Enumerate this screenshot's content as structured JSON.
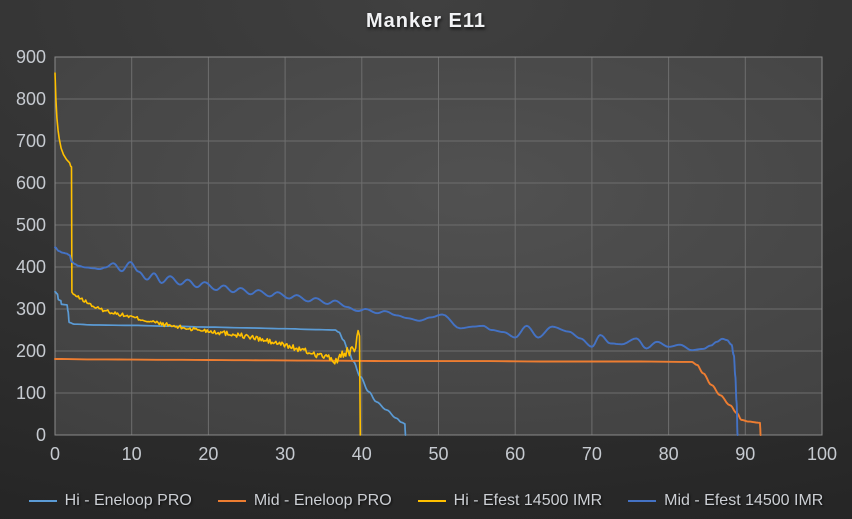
{
  "colors": {
    "background_outer": "#343434",
    "plot_fill_center": "#515151",
    "plot_fill_edge": "#3f3f3f",
    "gridline": "#6e6e6e",
    "plot_border": "#8a8a8a",
    "tick_text": "#c6cad0",
    "title_text": "#f1f2f4",
    "legend_text": "#cdd0d5"
  },
  "chart_data": {
    "type": "line",
    "title": "Manker E11",
    "xlabel": "",
    "ylabel": "",
    "xlim": [
      0,
      100
    ],
    "ylim": [
      0,
      900
    ],
    "x_ticks": [
      0,
      10,
      20,
      30,
      40,
      50,
      60,
      70,
      80,
      90,
      100
    ],
    "y_ticks": [
      0,
      100,
      200,
      300,
      400,
      500,
      600,
      700,
      800,
      900
    ],
    "grid": true,
    "legend_position": "bottom",
    "series": [
      {
        "name": "Hi - Eneloop PRO",
        "color": "#5B9BD5",
        "width": 1.7,
        "smooth": true,
        "points": [
          [
            0,
            341
          ],
          [
            0.3,
            336
          ],
          [
            0.45,
            322
          ],
          [
            0.75,
            320
          ],
          [
            0.85,
            311
          ],
          [
            1.55,
            310
          ],
          [
            1.7,
            295
          ],
          [
            1.85,
            268
          ],
          [
            2.5,
            264
          ],
          [
            5,
            262
          ],
          [
            10,
            261
          ],
          [
            15,
            259
          ],
          [
            20,
            257
          ],
          [
            25,
            255
          ],
          [
            30,
            253
          ],
          [
            34,
            251
          ],
          [
            36.5,
            250
          ],
          [
            37,
            245
          ],
          [
            37.6,
            226
          ],
          [
            38.2,
            202
          ],
          [
            38.9,
            175
          ],
          [
            39.8,
            139
          ],
          [
            40.9,
            103
          ],
          [
            41.9,
            79
          ],
          [
            43.2,
            60
          ],
          [
            44.5,
            40
          ],
          [
            45.2,
            30
          ],
          [
            45.6,
            27
          ],
          [
            45.7,
            0
          ]
        ]
      },
      {
        "name": "Mid - Eneloop PRO",
        "color": "#ED7D31",
        "width": 1.9,
        "smooth": true,
        "points": [
          [
            0,
            181
          ],
          [
            5,
            180
          ],
          [
            15,
            179
          ],
          [
            25,
            178
          ],
          [
            35,
            177
          ],
          [
            45,
            176
          ],
          [
            55,
            176
          ],
          [
            65,
            175
          ],
          [
            75,
            175
          ],
          [
            83,
            174
          ],
          [
            83.7,
            167
          ],
          [
            84.5,
            147
          ],
          [
            85.6,
            119
          ],
          [
            86.7,
            95
          ],
          [
            88,
            71
          ],
          [
            88.9,
            52
          ],
          [
            89.5,
            36
          ],
          [
            90.4,
            32
          ],
          [
            91.9,
            29
          ],
          [
            92,
            0
          ]
        ]
      },
      {
        "name": "Hi - Efest 14500 IMR",
        "color": "#FFC000",
        "width": 1.6,
        "smooth": false,
        "noise": {
          "from": 2.4,
          "to": 39.6,
          "step": 0.16,
          "amp_start": 3.5,
          "amp_end": 8
        },
        "points": [
          [
            0,
            862
          ],
          [
            0.12,
            800
          ],
          [
            0.25,
            755
          ],
          [
            0.4,
            725
          ],
          [
            0.55,
            706
          ],
          [
            0.8,
            683
          ],
          [
            1.1,
            668
          ],
          [
            1.5,
            656
          ],
          [
            1.9,
            648
          ],
          [
            2.05,
            640
          ],
          [
            2.15,
            638
          ],
          [
            2.2,
            340
          ],
          [
            2.4,
            335
          ],
          [
            3,
            328
          ],
          [
            4,
            318
          ],
          [
            5,
            306
          ],
          [
            6,
            299
          ],
          [
            7,
            294
          ],
          [
            8,
            289
          ],
          [
            9,
            285
          ],
          [
            10,
            281
          ],
          [
            12,
            272
          ],
          [
            14,
            264
          ],
          [
            16,
            257
          ],
          [
            18,
            252
          ],
          [
            20,
            248
          ],
          [
            22,
            243
          ],
          [
            24,
            238
          ],
          [
            26,
            231
          ],
          [
            28,
            222
          ],
          [
            30,
            214
          ],
          [
            32,
            203
          ],
          [
            34,
            192
          ],
          [
            35,
            188
          ],
          [
            36,
            181
          ],
          [
            36.6,
            174
          ],
          [
            37,
            183
          ],
          [
            37.4,
            196
          ],
          [
            37.7,
            184
          ],
          [
            38.1,
            201
          ],
          [
            38.4,
            188
          ],
          [
            38.8,
            216
          ],
          [
            39.1,
            201
          ],
          [
            39.35,
            228
          ],
          [
            39.55,
            243
          ],
          [
            39.7,
            236
          ],
          [
            39.8,
            0
          ]
        ]
      },
      {
        "name": "Mid - Efest 14500 IMR",
        "color": "#4472C4",
        "width": 1.9,
        "smooth": true,
        "points": [
          [
            0,
            447
          ],
          [
            0.5,
            438
          ],
          [
            1,
            434
          ],
          [
            1.5,
            432
          ],
          [
            1.9,
            428
          ],
          [
            2.2,
            412
          ],
          [
            2.6,
            407
          ],
          [
            3,
            403
          ],
          [
            4,
            399
          ],
          [
            5,
            397
          ],
          [
            5.8,
            395
          ],
          [
            6.6,
            399
          ],
          [
            7.6,
            409
          ],
          [
            8.7,
            390
          ],
          [
            9.8,
            412
          ],
          [
            10.9,
            389
          ],
          [
            12,
            370
          ],
          [
            12.9,
            385
          ],
          [
            13.9,
            362
          ],
          [
            15,
            378
          ],
          [
            16.3,
            358
          ],
          [
            17.3,
            370
          ],
          [
            18.5,
            352
          ],
          [
            19.5,
            364
          ],
          [
            21,
            345
          ],
          [
            22,
            356
          ],
          [
            23.2,
            340
          ],
          [
            24.2,
            350
          ],
          [
            25.5,
            335
          ],
          [
            26.5,
            345
          ],
          [
            28,
            330
          ],
          [
            29,
            340
          ],
          [
            30.5,
            325
          ],
          [
            31.5,
            333
          ],
          [
            33,
            318
          ],
          [
            34,
            326
          ],
          [
            35.5,
            312
          ],
          [
            36.5,
            320
          ],
          [
            38,
            305
          ],
          [
            39.5,
            295
          ],
          [
            40.5,
            300
          ],
          [
            42,
            290
          ],
          [
            43,
            295
          ],
          [
            44.5,
            285
          ],
          [
            46,
            278
          ],
          [
            47.5,
            272
          ],
          [
            49,
            280
          ],
          [
            50.5,
            287
          ],
          [
            52.8,
            254
          ],
          [
            54.5,
            258
          ],
          [
            55.8,
            260
          ],
          [
            56.9,
            250
          ],
          [
            58.5,
            245
          ],
          [
            60,
            232
          ],
          [
            61.5,
            260
          ],
          [
            63,
            232
          ],
          [
            64.8,
            258
          ],
          [
            67,
            246
          ],
          [
            68.5,
            230
          ],
          [
            70,
            210
          ],
          [
            71.1,
            238
          ],
          [
            72.4,
            218
          ],
          [
            73.9,
            216
          ],
          [
            75.8,
            230
          ],
          [
            77.1,
            206
          ],
          [
            78.5,
            222
          ],
          [
            80,
            210
          ],
          [
            81.5,
            215
          ],
          [
            83,
            202
          ],
          [
            84.5,
            205
          ],
          [
            85.5,
            213
          ],
          [
            86.3,
            222
          ],
          [
            87,
            229
          ],
          [
            87.6,
            226
          ],
          [
            88.2,
            215
          ],
          [
            88.5,
            190
          ],
          [
            88.7,
            140
          ],
          [
            88.85,
            80
          ],
          [
            89,
            0
          ]
        ]
      }
    ]
  }
}
